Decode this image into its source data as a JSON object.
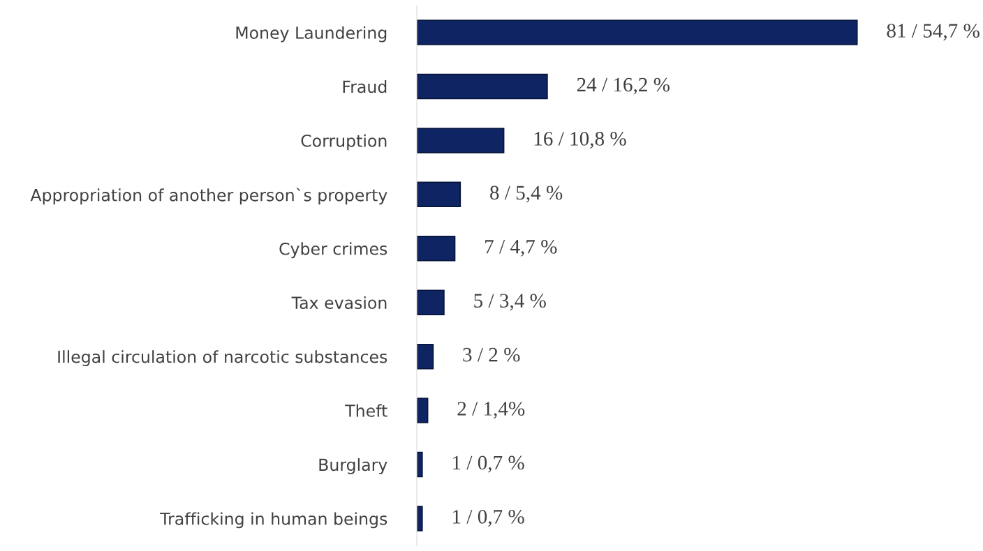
{
  "chart_data": {
    "type": "bar",
    "orientation": "horizontal",
    "categories": [
      "Money Laundering",
      "Fraud",
      "Corruption",
      "Appropriation of another person`s property",
      "Cyber crimes",
      "Tax evasion",
      "Illegal circulation of narcotic substances",
      "Theft",
      "Burglary",
      "Trafficking in human beings"
    ],
    "values": [
      81,
      24,
      16,
      8,
      7,
      5,
      3,
      2,
      1,
      1
    ],
    "value_labels": [
      "81 / 54,7 %",
      "24 / 16,2 %",
      "16 / 10,8 %",
      "8 / 5,4 %",
      "7 / 4,7 %",
      "5 / 3,4 %",
      "3 / 2 %",
      "2 / 1,4%",
      "1 / 0,7 %",
      "1 / 0,7 %"
    ],
    "color": "#0f2563",
    "grid": false,
    "legend": false
  }
}
